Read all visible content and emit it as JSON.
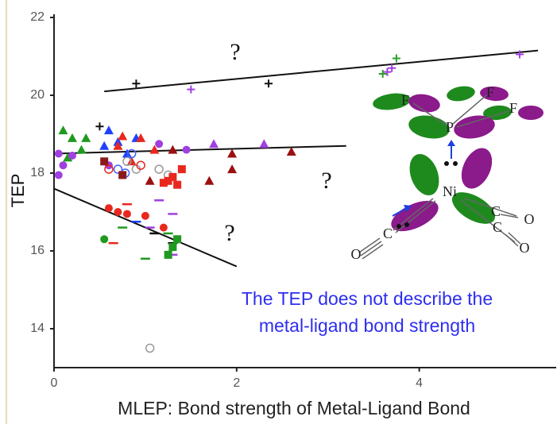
{
  "chart_data": {
    "type": "scatter",
    "xlabel": "MLEP: Bond strength of Metal-Ligand Bond",
    "ylabel": "TEP",
    "xlim": [
      0,
      5.5
    ],
    "ylim": [
      13,
      22
    ],
    "xticks": [
      0,
      2,
      4
    ],
    "yticks": [
      14,
      16,
      18,
      20,
      22
    ],
    "series": [
      {
        "marker": "plus",
        "color": "#111111",
        "x": [
          0.9,
          2.35,
          0.5
        ],
        "values": [
          20.3,
          20.3,
          19.2
        ]
      },
      {
        "marker": "plus",
        "color": "#a040e0",
        "x": [
          1.5,
          3.65,
          3.7,
          5.1
        ],
        "values": [
          20.15,
          20.6,
          20.7,
          21.05
        ]
      },
      {
        "marker": "plus",
        "color": "#2ca02c",
        "x": [
          3.6,
          3.75
        ],
        "values": [
          20.55,
          20.95
        ]
      },
      {
        "marker": "triangle",
        "color": "#1f9a1f",
        "x": [
          0.1,
          0.2,
          0.3,
          0.15,
          0.35
        ],
        "values": [
          19.1,
          18.9,
          18.6,
          18.4,
          18.9
        ]
      },
      {
        "marker": "triangle",
        "color": "#2040ff",
        "x": [
          0.6,
          0.7,
          0.8,
          0.55,
          0.9
        ],
        "values": [
          19.1,
          18.8,
          18.5,
          18.7,
          18.9
        ]
      },
      {
        "marker": "triangle",
        "color": "#e8281e",
        "x": [
          0.7,
          0.95,
          1.1,
          0.85,
          0.75
        ],
        "values": [
          18.7,
          18.9,
          18.6,
          18.3,
          18.95
        ]
      },
      {
        "marker": "triangle",
        "color": "#9b1010",
        "x": [
          1.3,
          1.95,
          1.95,
          2.6,
          1.7,
          1.05
        ],
        "values": [
          18.6,
          18.5,
          18.1,
          18.55,
          17.8,
          17.8
        ]
      },
      {
        "marker": "triangle",
        "color": "#a040e0",
        "x": [
          1.75,
          2.3
        ],
        "values": [
          18.75,
          18.75
        ]
      },
      {
        "marker": "circle",
        "color": "#a040e0",
        "x": [
          0.05,
          0.1,
          0.05,
          1.15,
          0.6,
          1.45,
          0.2
        ],
        "values": [
          18.5,
          18.2,
          17.95,
          18.75,
          18.2,
          18.6,
          18.45
        ]
      },
      {
        "marker": "open-circle",
        "color": "#999999",
        "x": [
          0.8,
          0.9,
          1.15,
          1.25,
          1.05
        ],
        "values": [
          18.3,
          18.1,
          18.1,
          17.95,
          13.5
        ]
      },
      {
        "marker": "open-circle",
        "color": "#4060ff",
        "x": [
          0.7,
          0.85,
          0.78
        ],
        "values": [
          18.1,
          18.5,
          18.0
        ]
      },
      {
        "marker": "open-circle",
        "color": "#e8281e",
        "x": [
          0.95,
          0.6
        ],
        "values": [
          18.2,
          18.1
        ]
      },
      {
        "marker": "square",
        "color": "#e8281e",
        "x": [
          1.2,
          1.3,
          1.4,
          1.35,
          1.25
        ],
        "values": [
          17.75,
          17.9,
          18.1,
          17.7,
          17.8
        ]
      },
      {
        "marker": "square",
        "color": "#8b1a1a",
        "x": [
          0.55,
          0.75
        ],
        "values": [
          18.3,
          17.95
        ]
      },
      {
        "marker": "circle",
        "color": "#e8281e",
        "x": [
          0.6,
          0.8,
          1.0,
          1.2,
          0.7
        ],
        "values": [
          17.1,
          16.95,
          16.9,
          16.6,
          17.0
        ]
      },
      {
        "marker": "circle",
        "color": "#1f9a1f",
        "x": [
          0.55
        ],
        "values": [
          16.3
        ]
      },
      {
        "marker": "dash",
        "color": "#e8281e",
        "x": [
          0.65,
          0.8
        ],
        "values": [
          16.2,
          17.2
        ]
      },
      {
        "marker": "dash",
        "color": "#1f9a1f",
        "x": [
          0.75,
          1.25,
          1.0
        ],
        "values": [
          16.6,
          16.45,
          15.8
        ]
      },
      {
        "marker": "dash",
        "color": "#a040e0",
        "x": [
          1.15,
          1.3,
          1.05,
          1.3
        ],
        "values": [
          17.3,
          16.95,
          16.6,
          15.9
        ]
      },
      {
        "marker": "dash",
        "color": "#111111",
        "x": [
          1.1,
          1.3
        ],
        "values": [
          16.45,
          16.2
        ]
      },
      {
        "marker": "dash",
        "color": "#2040ff",
        "x": [
          0.9
        ],
        "values": [
          16.75
        ]
      },
      {
        "marker": "square",
        "color": "#1f9a1f",
        "x": [
          1.25,
          1.3,
          1.35
        ],
        "values": [
          15.9,
          16.1,
          16.3
        ]
      }
    ],
    "trend_lines": [
      {
        "color": "#111111",
        "x": [
          0.55,
          5.3
        ],
        "values": [
          20.1,
          21.15
        ]
      },
      {
        "color": "#111111",
        "x": [
          0,
          3.2
        ],
        "values": [
          18.5,
          18.7
        ]
      },
      {
        "color": "#111111",
        "x": [
          0,
          2
        ],
        "values": [
          17.6,
          15.6
        ]
      }
    ],
    "annotations": [
      "?",
      "?",
      "?"
    ],
    "caption": [
      "The TEP does not describe the",
      "metal-ligand bond strength"
    ],
    "inset_labels": [
      "F",
      "F",
      "F",
      "P",
      "Ni",
      "C",
      "O",
      "C",
      "O",
      "C",
      "O"
    ]
  }
}
